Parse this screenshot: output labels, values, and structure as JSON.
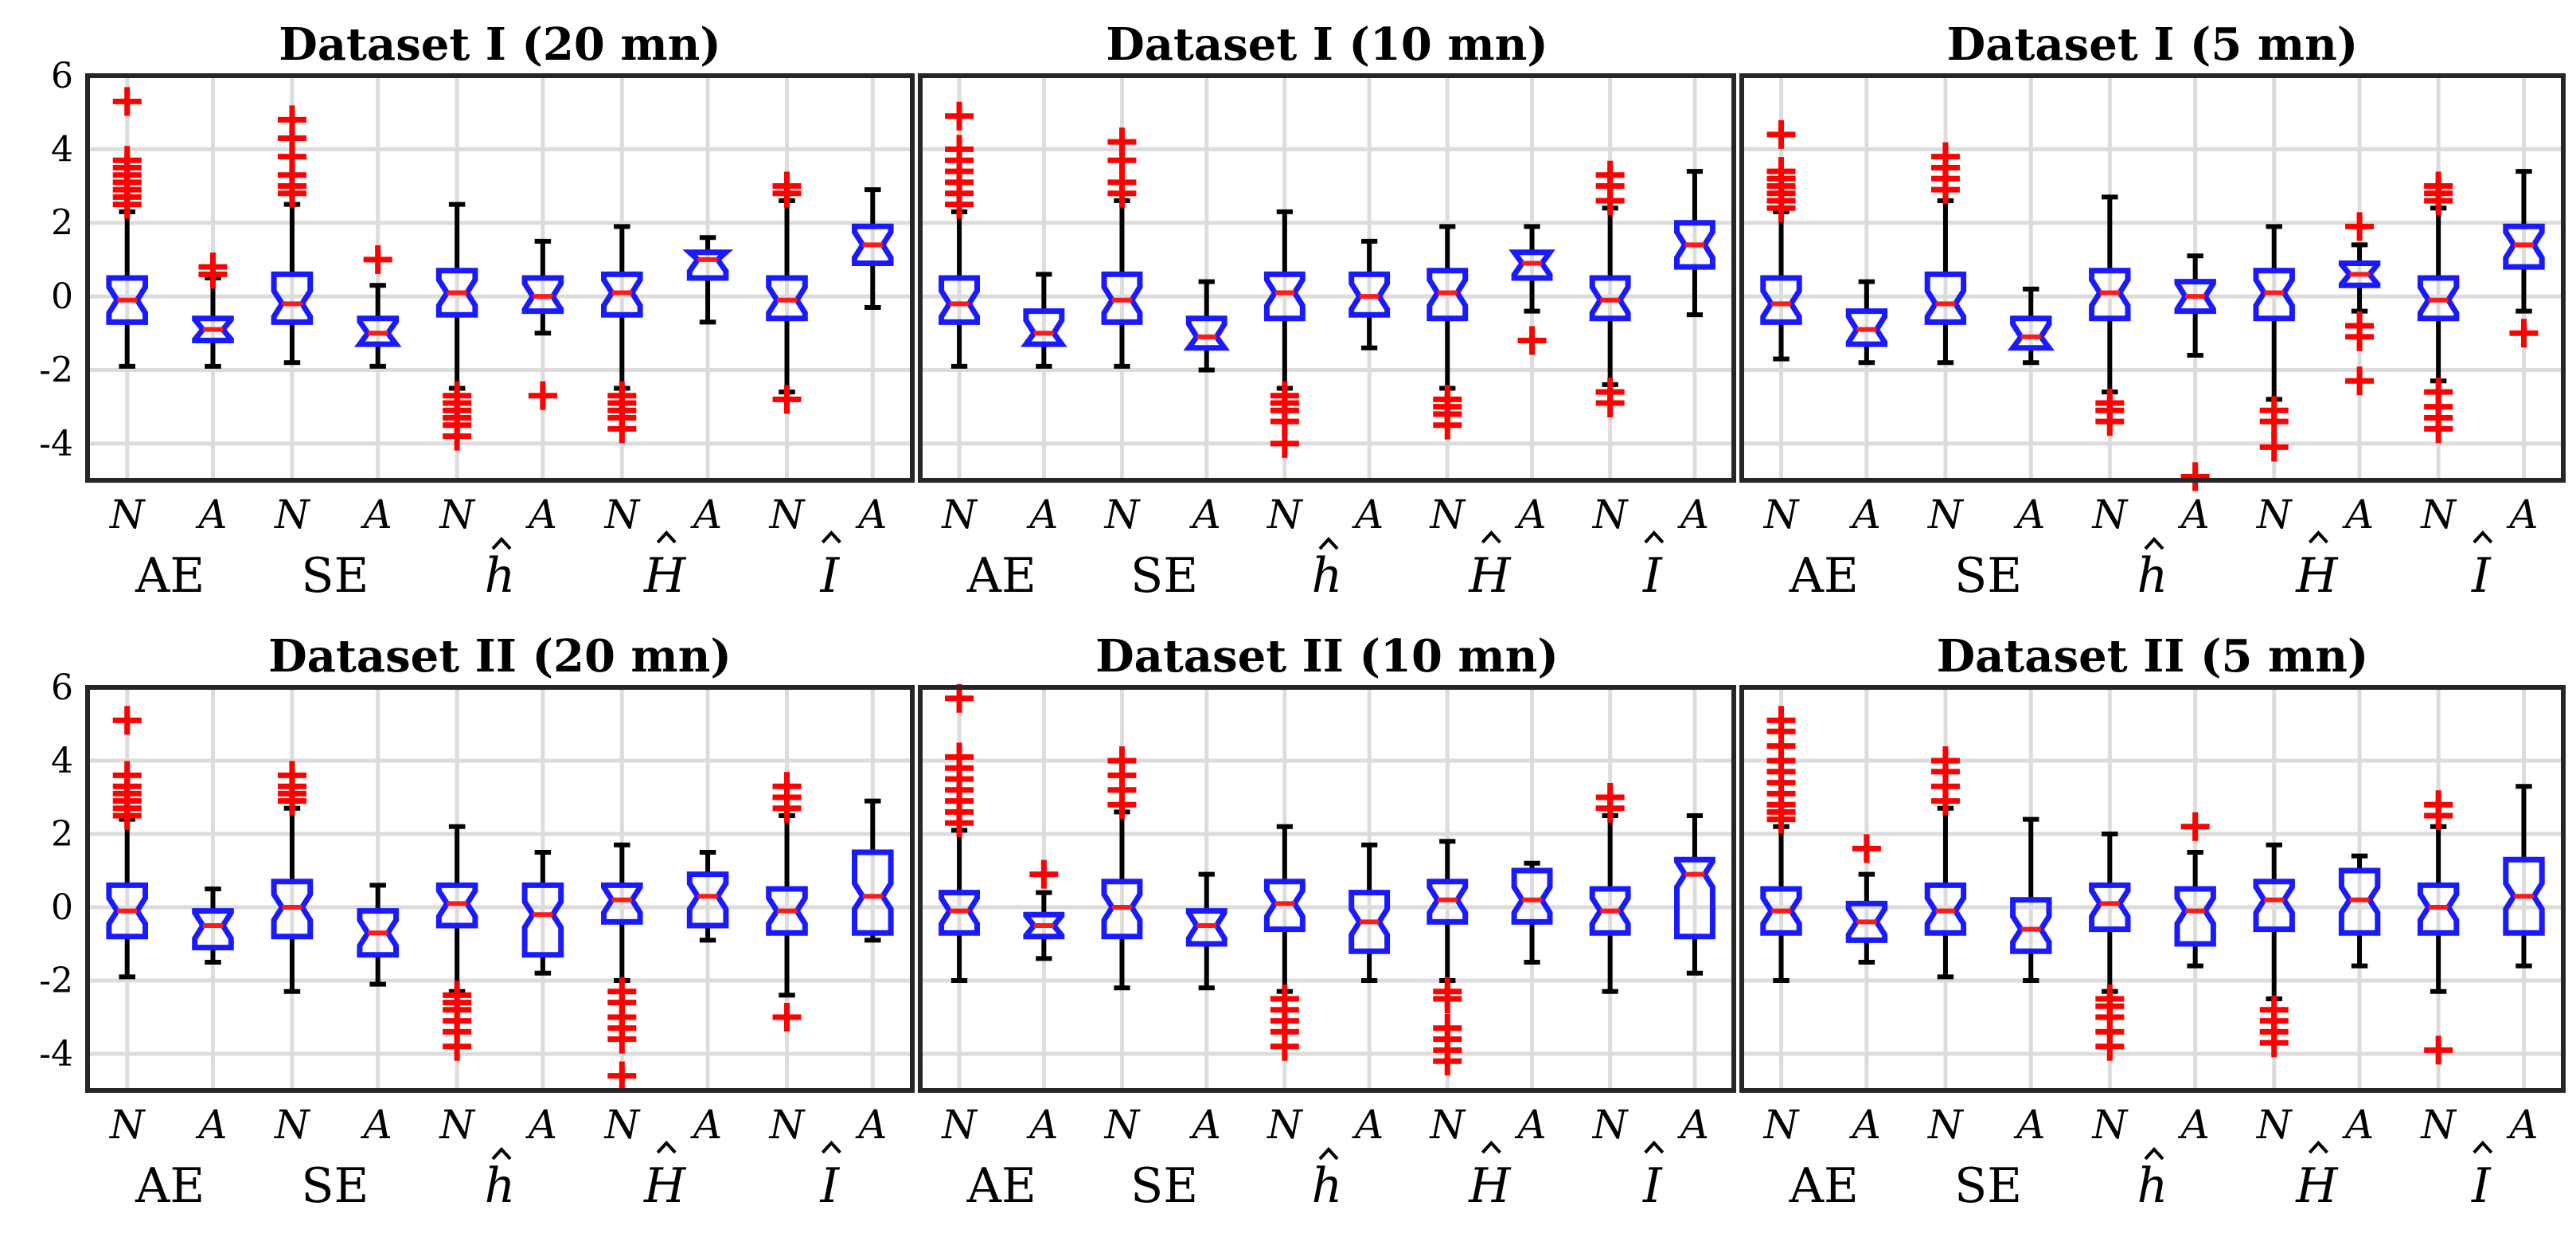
{
  "chart_data": {
    "type": "box",
    "ylim": [
      -5,
      6
    ],
    "yticks": [
      6,
      4,
      2,
      0,
      -2,
      -4
    ],
    "grid": true,
    "group_labels": [
      "N",
      "A"
    ],
    "metrics": [
      "AE",
      "SE",
      "h",
      "H",
      "I"
    ],
    "metric_hat": [
      false,
      false,
      true,
      true,
      true
    ],
    "colors": {
      "N": "#1a1aff",
      "A": "#1a1aff",
      "median": "#ff1a1a",
      "outlier": "#ff0000",
      "whisker": "#000000"
    },
    "panels": [
      {
        "title": "Dataset I (20 mn)",
        "boxes": [
          {
            "metric": "AE",
            "group": "N",
            "q1": -0.7,
            "med": -0.1,
            "q3": 0.5,
            "lo": -1.9,
            "hi": 2.3,
            "out": [
              2.5,
              2.7,
              2.9,
              3.1,
              3.3,
              3.5,
              3.7,
              5.3
            ]
          },
          {
            "metric": "AE",
            "group": "A",
            "q1": -1.2,
            "med": -0.9,
            "q3": -0.6,
            "lo": -1.9,
            "hi": 0.5,
            "out": [
              0.6,
              0.8
            ]
          },
          {
            "metric": "SE",
            "group": "N",
            "q1": -0.7,
            "med": -0.2,
            "q3": 0.6,
            "lo": -1.8,
            "hi": 2.5,
            "out": [
              2.8,
              3.0,
              3.3,
              3.8,
              4.3,
              4.8
            ]
          },
          {
            "metric": "SE",
            "group": "A",
            "q1": -1.3,
            "med": -1.0,
            "q3": -0.6,
            "lo": -1.9,
            "hi": 0.3,
            "out": [
              1.0
            ]
          },
          {
            "metric": "h",
            "group": "N",
            "q1": -0.5,
            "med": 0.1,
            "q3": 0.7,
            "lo": -2.5,
            "hi": 2.5,
            "out": [
              -2.7,
              -2.9,
              -3.1,
              -3.3,
              -3.5,
              -3.8
            ]
          },
          {
            "metric": "h",
            "group": "A",
            "q1": -0.4,
            "med": 0.0,
            "q3": 0.5,
            "lo": -1.0,
            "hi": 1.5,
            "out": [
              -2.7
            ]
          },
          {
            "metric": "H",
            "group": "N",
            "q1": -0.5,
            "med": 0.1,
            "q3": 0.6,
            "lo": -2.5,
            "hi": 1.9,
            "out": [
              -2.7,
              -2.9,
              -3.1,
              -3.3,
              -3.6
            ]
          },
          {
            "metric": "H",
            "group": "A",
            "q1": 0.5,
            "med": 1.0,
            "q3": 1.2,
            "lo": -0.7,
            "hi": 1.6,
            "out": []
          },
          {
            "metric": "I",
            "group": "N",
            "q1": -0.6,
            "med": -0.1,
            "q3": 0.5,
            "lo": -2.6,
            "hi": 2.6,
            "out": [
              2.8,
              3.0,
              -2.8
            ]
          },
          {
            "metric": "I",
            "group": "A",
            "q1": 0.9,
            "med": 1.4,
            "q3": 1.9,
            "lo": -0.3,
            "hi": 2.9,
            "out": []
          }
        ]
      },
      {
        "title": "Dataset I (10 mn)",
        "boxes": [
          {
            "metric": "AE",
            "group": "N",
            "q1": -0.7,
            "med": -0.2,
            "q3": 0.5,
            "lo": -1.9,
            "hi": 2.3,
            "out": [
              2.5,
              2.8,
              3.1,
              3.4,
              3.7,
              4.0,
              4.9
            ]
          },
          {
            "metric": "AE",
            "group": "A",
            "q1": -1.3,
            "med": -1.0,
            "q3": -0.4,
            "lo": -1.9,
            "hi": 0.6,
            "out": []
          },
          {
            "metric": "SE",
            "group": "N",
            "q1": -0.7,
            "med": -0.1,
            "q3": 0.6,
            "lo": -1.9,
            "hi": 2.6,
            "out": [
              2.8,
              3.1,
              3.7,
              4.2
            ]
          },
          {
            "metric": "SE",
            "group": "A",
            "q1": -1.4,
            "med": -1.1,
            "q3": -0.6,
            "lo": -2.0,
            "hi": 0.4,
            "out": []
          },
          {
            "metric": "h",
            "group": "N",
            "q1": -0.6,
            "med": 0.1,
            "q3": 0.6,
            "lo": -2.5,
            "hi": 2.3,
            "out": [
              -2.7,
              -2.9,
              -3.1,
              -3.4,
              -4.0
            ]
          },
          {
            "metric": "h",
            "group": "A",
            "q1": -0.5,
            "med": 0.0,
            "q3": 0.6,
            "lo": -1.4,
            "hi": 1.5,
            "out": []
          },
          {
            "metric": "H",
            "group": "N",
            "q1": -0.6,
            "med": 0.1,
            "q3": 0.7,
            "lo": -2.5,
            "hi": 1.9,
            "out": [
              -2.8,
              -3.0,
              -3.2,
              -3.5
            ]
          },
          {
            "metric": "H",
            "group": "A",
            "q1": 0.5,
            "med": 0.9,
            "q3": 1.2,
            "lo": -0.4,
            "hi": 1.9,
            "out": [
              -1.2
            ]
          },
          {
            "metric": "I",
            "group": "N",
            "q1": -0.6,
            "med": -0.1,
            "q3": 0.5,
            "lo": -2.4,
            "hi": 2.4,
            "out": [
              2.6,
              3.0,
              3.3,
              -2.6,
              -2.9
            ]
          },
          {
            "metric": "I",
            "group": "A",
            "q1": 0.8,
            "med": 1.4,
            "q3": 2.0,
            "lo": -0.5,
            "hi": 3.4,
            "out": []
          }
        ]
      },
      {
        "title": "Dataset I (5 mn)",
        "boxes": [
          {
            "metric": "AE",
            "group": "N",
            "q1": -0.7,
            "med": -0.2,
            "q3": 0.5,
            "lo": -1.7,
            "hi": 2.3,
            "out": [
              2.4,
              2.6,
              2.8,
              3.0,
              3.2,
              3.4,
              4.4
            ]
          },
          {
            "metric": "AE",
            "group": "A",
            "q1": -1.3,
            "med": -0.9,
            "q3": -0.4,
            "lo": -1.8,
            "hi": 0.4,
            "out": []
          },
          {
            "metric": "SE",
            "group": "N",
            "q1": -0.7,
            "med": -0.2,
            "q3": 0.6,
            "lo": -1.8,
            "hi": 2.6,
            "out": [
              2.9,
              3.2,
              3.5,
              3.8
            ]
          },
          {
            "metric": "SE",
            "group": "A",
            "q1": -1.4,
            "med": -1.1,
            "q3": -0.6,
            "lo": -1.8,
            "hi": 0.2,
            "out": []
          },
          {
            "metric": "h",
            "group": "N",
            "q1": -0.6,
            "med": 0.1,
            "q3": 0.7,
            "lo": -2.6,
            "hi": 2.7,
            "out": [
              -2.9,
              -3.1,
              -3.4
            ]
          },
          {
            "metric": "h",
            "group": "A",
            "q1": -0.4,
            "med": 0.0,
            "q3": 0.4,
            "lo": -1.6,
            "hi": 1.1,
            "out": [
              -4.9
            ]
          },
          {
            "metric": "H",
            "group": "N",
            "q1": -0.6,
            "med": 0.1,
            "q3": 0.7,
            "lo": -2.8,
            "hi": 1.9,
            "out": [
              -3.1,
              -3.4,
              -4.1
            ]
          },
          {
            "metric": "H",
            "group": "A",
            "q1": 0.3,
            "med": 0.6,
            "q3": 0.9,
            "lo": -0.4,
            "hi": 1.4,
            "out": [
              1.9,
              -0.8,
              -1.1,
              -2.3
            ]
          },
          {
            "metric": "I",
            "group": "N",
            "q1": -0.6,
            "med": -0.1,
            "q3": 0.5,
            "lo": -2.3,
            "hi": 2.4,
            "out": [
              2.6,
              2.8,
              3.0,
              -2.6,
              -3.0,
              -3.3,
              -3.6
            ]
          },
          {
            "metric": "I",
            "group": "A",
            "q1": 0.8,
            "med": 1.4,
            "q3": 1.9,
            "lo": -0.4,
            "hi": 3.4,
            "out": [
              -1.0
            ]
          }
        ]
      },
      {
        "title": "Dataset II (20 mn)",
        "boxes": [
          {
            "metric": "AE",
            "group": "N",
            "q1": -0.8,
            "med": -0.1,
            "q3": 0.6,
            "lo": -1.9,
            "hi": 2.4,
            "out": [
              2.5,
              2.7,
              2.9,
              3.1,
              3.3,
              3.6,
              5.1
            ]
          },
          {
            "metric": "AE",
            "group": "A",
            "q1": -1.1,
            "med": -0.5,
            "q3": -0.1,
            "lo": -1.5,
            "hi": 0.5,
            "out": []
          },
          {
            "metric": "SE",
            "group": "N",
            "q1": -0.8,
            "med": 0.0,
            "q3": 0.7,
            "lo": -2.3,
            "hi": 2.7,
            "out": [
              2.9,
              3.1,
              3.3,
              3.6
            ]
          },
          {
            "metric": "SE",
            "group": "A",
            "q1": -1.3,
            "med": -0.7,
            "q3": -0.1,
            "lo": -2.1,
            "hi": 0.6,
            "out": []
          },
          {
            "metric": "h",
            "group": "N",
            "q1": -0.5,
            "med": 0.1,
            "q3": 0.6,
            "lo": -2.3,
            "hi": 2.2,
            "out": [
              -2.4,
              -2.6,
              -2.8,
              -3.1,
              -3.4,
              -3.8
            ]
          },
          {
            "metric": "h",
            "group": "A",
            "q1": -1.3,
            "med": -0.2,
            "q3": 0.6,
            "lo": -1.8,
            "hi": 1.5,
            "out": []
          },
          {
            "metric": "H",
            "group": "N",
            "q1": -0.4,
            "med": 0.2,
            "q3": 0.6,
            "lo": -2.0,
            "hi": 1.7,
            "out": [
              -2.3,
              -2.6,
              -3.0,
              -3.3,
              -3.6,
              -4.6
            ]
          },
          {
            "metric": "H",
            "group": "A",
            "q1": -0.5,
            "med": 0.3,
            "q3": 0.9,
            "lo": -0.9,
            "hi": 1.5,
            "out": []
          },
          {
            "metric": "I",
            "group": "N",
            "q1": -0.7,
            "med": -0.1,
            "q3": 0.5,
            "lo": -2.4,
            "hi": 2.5,
            "out": [
              2.7,
              3.0,
              3.3,
              -3.0
            ]
          },
          {
            "metric": "I",
            "group": "A",
            "q1": -0.7,
            "med": 0.3,
            "q3": 1.5,
            "lo": -0.9,
            "hi": 2.9,
            "out": []
          }
        ]
      },
      {
        "title": "Dataset II (10 mn)",
        "boxes": [
          {
            "metric": "AE",
            "group": "N",
            "q1": -0.7,
            "med": -0.1,
            "q3": 0.4,
            "lo": -2.0,
            "hi": 2.1,
            "out": [
              2.3,
              2.6,
              2.9,
              3.2,
              3.5,
              3.8,
              4.1,
              5.7
            ]
          },
          {
            "metric": "AE",
            "group": "A",
            "q1": -0.8,
            "med": -0.5,
            "q3": -0.2,
            "lo": -1.4,
            "hi": 0.4,
            "out": [
              0.9
            ]
          },
          {
            "metric": "SE",
            "group": "N",
            "q1": -0.8,
            "med": 0.0,
            "q3": 0.7,
            "lo": -2.2,
            "hi": 2.6,
            "out": [
              2.8,
              3.2,
              3.6,
              4.0
            ]
          },
          {
            "metric": "SE",
            "group": "A",
            "q1": -1.0,
            "med": -0.5,
            "q3": -0.1,
            "lo": -2.2,
            "hi": 0.9,
            "out": []
          },
          {
            "metric": "h",
            "group": "N",
            "q1": -0.6,
            "med": 0.1,
            "q3": 0.7,
            "lo": -2.3,
            "hi": 2.2,
            "out": [
              -2.5,
              -2.8,
              -3.1,
              -3.4,
              -3.8
            ]
          },
          {
            "metric": "h",
            "group": "A",
            "q1": -1.2,
            "med": -0.4,
            "q3": 0.4,
            "lo": -2.0,
            "hi": 1.7,
            "out": []
          },
          {
            "metric": "H",
            "group": "N",
            "q1": -0.4,
            "med": 0.2,
            "q3": 0.7,
            "lo": -2.0,
            "hi": 1.8,
            "out": [
              -2.3,
              -2.5,
              -3.3,
              -3.6,
              -3.9,
              -4.2
            ]
          },
          {
            "metric": "H",
            "group": "A",
            "q1": -0.4,
            "med": 0.2,
            "q3": 1.0,
            "lo": -1.5,
            "hi": 1.2,
            "out": []
          },
          {
            "metric": "I",
            "group": "N",
            "q1": -0.7,
            "med": -0.1,
            "q3": 0.5,
            "lo": -2.3,
            "hi": 2.5,
            "out": [
              2.7,
              3.0
            ]
          },
          {
            "metric": "I",
            "group": "A",
            "q1": -0.8,
            "med": 0.9,
            "q3": 1.3,
            "lo": -1.8,
            "hi": 2.5,
            "out": []
          }
        ]
      },
      {
        "title": "Dataset II (5 mn)",
        "boxes": [
          {
            "metric": "AE",
            "group": "N",
            "q1": -0.7,
            "med": -0.1,
            "q3": 0.5,
            "lo": -2.0,
            "hi": 2.2,
            "out": [
              2.4,
              2.6,
              2.8,
              3.1,
              3.4,
              3.7,
              4.0,
              4.4,
              4.8,
              5.1
            ]
          },
          {
            "metric": "AE",
            "group": "A",
            "q1": -0.9,
            "med": -0.4,
            "q3": 0.1,
            "lo": -1.5,
            "hi": 0.9,
            "out": [
              1.6
            ]
          },
          {
            "metric": "SE",
            "group": "N",
            "q1": -0.7,
            "med": -0.1,
            "q3": 0.6,
            "lo": -1.9,
            "hi": 2.7,
            "out": [
              2.9,
              3.3,
              3.7,
              4.0
            ]
          },
          {
            "metric": "SE",
            "group": "A",
            "q1": -1.2,
            "med": -0.6,
            "q3": 0.2,
            "lo": -2.0,
            "hi": 2.4,
            "out": []
          },
          {
            "metric": "h",
            "group": "N",
            "q1": -0.6,
            "med": 0.1,
            "q3": 0.6,
            "lo": -2.3,
            "hi": 2.0,
            "out": [
              -2.5,
              -2.7,
              -3.0,
              -3.4,
              -3.8
            ]
          },
          {
            "metric": "h",
            "group": "A",
            "q1": -1.0,
            "med": -0.1,
            "q3": 0.5,
            "lo": -1.6,
            "hi": 1.5,
            "out": [
              2.2
            ]
          },
          {
            "metric": "H",
            "group": "N",
            "q1": -0.6,
            "med": 0.2,
            "q3": 0.7,
            "lo": -2.5,
            "hi": 1.7,
            "out": [
              -2.8,
              -3.1,
              -3.4,
              -3.7
            ]
          },
          {
            "metric": "H",
            "group": "A",
            "q1": -0.7,
            "med": 0.2,
            "q3": 1.0,
            "lo": -1.6,
            "hi": 1.4,
            "out": []
          },
          {
            "metric": "I",
            "group": "N",
            "q1": -0.7,
            "med": 0.0,
            "q3": 0.6,
            "lo": -2.3,
            "hi": 2.2,
            "out": [
              2.5,
              2.8,
              -3.9
            ]
          },
          {
            "metric": "I",
            "group": "A",
            "q1": -0.7,
            "med": 0.3,
            "q3": 1.3,
            "lo": -1.6,
            "hi": 3.3,
            "out": []
          }
        ]
      }
    ]
  }
}
